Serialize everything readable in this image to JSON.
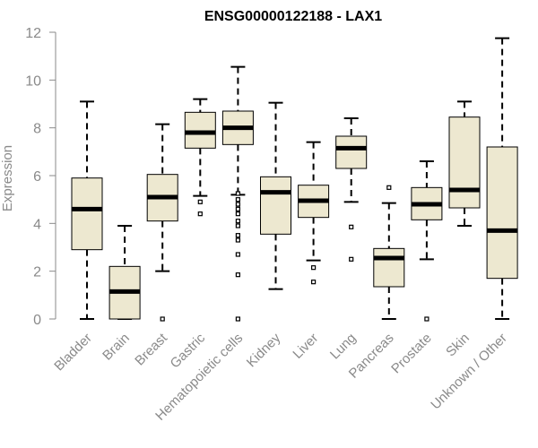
{
  "chart_data": {
    "type": "boxplot",
    "title": "ENSG00000122188 - LAX1",
    "xlabel": "",
    "ylabel": "Expression",
    "ylim": [
      0,
      12
    ],
    "yticks": [
      0,
      2,
      4,
      6,
      8,
      10,
      12
    ],
    "colors": {
      "box_fill": "#ede8d0",
      "stroke": "#000000",
      "axis_text": "#8a8a8a"
    },
    "categories": [
      "Bladder",
      "Brain",
      "Breast",
      "Gastric",
      "Hematopoietic cells",
      "Kidney",
      "Liver",
      "Lung",
      "Pancreas",
      "Prostate",
      "Skin",
      "Unknown / Other"
    ],
    "boxes": [
      {
        "name": "Bladder",
        "min": 0,
        "q1": 2.9,
        "median": 4.6,
        "q3": 5.9,
        "max": 9.1,
        "outliers": []
      },
      {
        "name": "Brain",
        "min": 0,
        "q1": 0,
        "median": 1.15,
        "q3": 2.2,
        "max": 3.9,
        "outliers": []
      },
      {
        "name": "Breast",
        "min": 2.0,
        "q1": 4.1,
        "median": 5.1,
        "q3": 6.05,
        "max": 8.15,
        "outliers": [
          0
        ]
      },
      {
        "name": "Gastric",
        "min": 5.15,
        "q1": 7.15,
        "median": 7.8,
        "q3": 8.65,
        "max": 9.2,
        "outliers": [
          4.9,
          4.4
        ]
      },
      {
        "name": "Hematopoietic cells",
        "min": 5.2,
        "q1": 7.3,
        "median": 8.0,
        "q3": 8.7,
        "max": 10.55,
        "outliers": [
          5.25,
          5.0,
          4.8,
          4.6,
          4.4,
          4.1,
          3.9,
          3.5,
          3.3,
          2.7,
          1.85,
          0
        ]
      },
      {
        "name": "Kidney",
        "min": 1.25,
        "q1": 3.55,
        "median": 5.3,
        "q3": 5.95,
        "max": 9.05,
        "outliers": []
      },
      {
        "name": "Liver",
        "min": 2.45,
        "q1": 4.25,
        "median": 4.95,
        "q3": 5.6,
        "max": 7.4,
        "outliers": [
          2.15,
          1.55
        ]
      },
      {
        "name": "Lung",
        "min": 4.9,
        "q1": 6.3,
        "median": 7.15,
        "q3": 7.65,
        "max": 8.4,
        "outliers": [
          3.85,
          2.5
        ]
      },
      {
        "name": "Pancreas",
        "min": 0,
        "q1": 1.35,
        "median": 2.55,
        "q3": 2.95,
        "max": 4.85,
        "outliers": [
          5.5
        ]
      },
      {
        "name": "Prostate",
        "min": 2.5,
        "q1": 4.15,
        "median": 4.8,
        "q3": 5.5,
        "max": 6.6,
        "outliers": [
          0
        ]
      },
      {
        "name": "Skin",
        "min": 3.9,
        "q1": 4.65,
        "median": 5.4,
        "q3": 8.45,
        "max": 9.1,
        "outliers": []
      },
      {
        "name": "Unknown / Other",
        "min": 0,
        "q1": 1.7,
        "median": 3.7,
        "q3": 7.2,
        "max": 11.75,
        "outliers": []
      }
    ]
  }
}
